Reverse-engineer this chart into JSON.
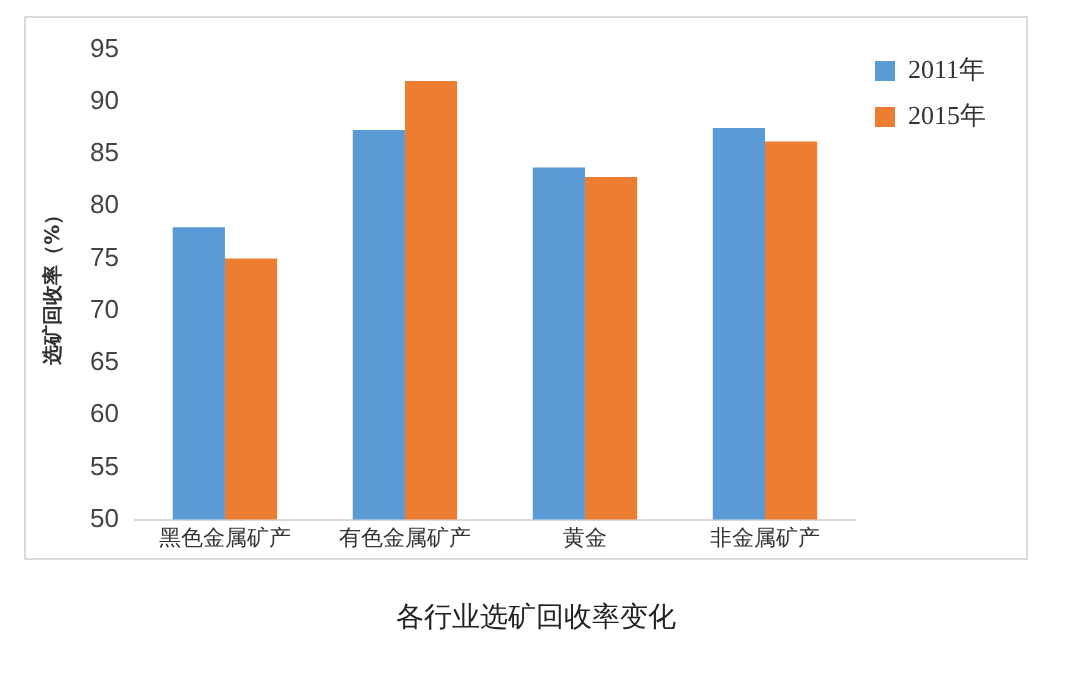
{
  "chart_data": {
    "type": "bar",
    "title": "各行业选矿回收率变化",
    "ylabel": "选矿回收率（%）",
    "categories": [
      "黑色金属矿产",
      "有色金属矿产",
      "黄金",
      "非金属矿产"
    ],
    "series": [
      {
        "name": "2011年",
        "color": "#5b9bd5",
        "values": [
          78,
          87.3,
          83.7,
          87.5
        ]
      },
      {
        "name": "2015年",
        "color": "#ed7d31",
        "values": [
          75,
          92,
          82.8,
          86.2
        ]
      }
    ],
    "ylim": [
      50,
      95
    ],
    "yticks": [
      50,
      55,
      60,
      65,
      70,
      75,
      80,
      85,
      90,
      95
    ],
    "grid": false,
    "legend": "top right"
  }
}
